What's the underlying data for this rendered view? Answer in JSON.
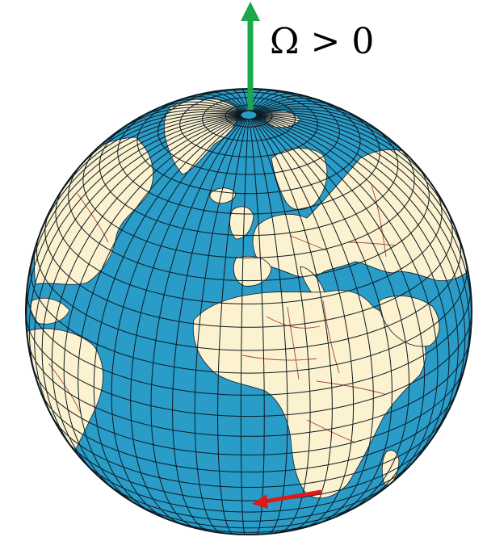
{
  "diagram": {
    "rotation_label": "Ω > 0",
    "colors": {
      "ocean": "#2a9cc8",
      "land": "#fdf2cf",
      "graticule": "#0c1a22",
      "border": "#a3443a",
      "rotation_arrow": "#1aa84a",
      "motion_arrow": "#e01818"
    },
    "icons": {
      "rotation_arrow": "arrow-up-icon",
      "motion_arrow": "arrow-left-icon"
    }
  }
}
